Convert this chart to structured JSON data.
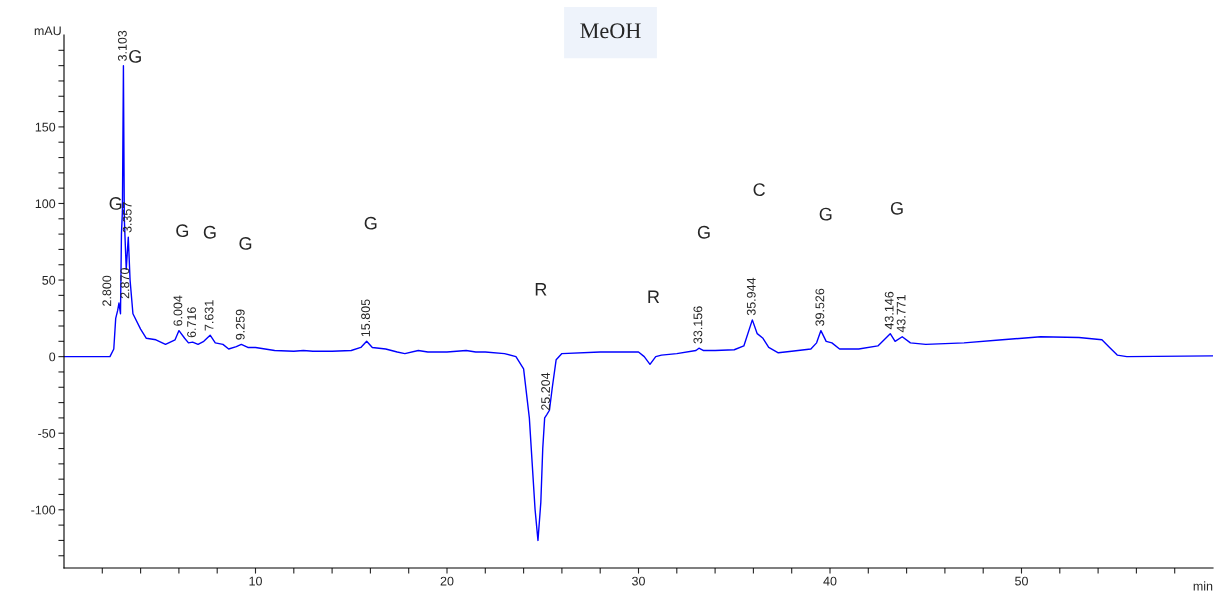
{
  "chart_data": {
    "type": "line",
    "title": "MeOH",
    "xlabel": "min",
    "ylabel": "mAU",
    "xlim": [
      0,
      60
    ],
    "ylim": [
      -138,
      210
    ],
    "xticks": [
      {
        "value": 2,
        "label": null
      },
      {
        "value": 4,
        "label": null
      },
      {
        "value": 6,
        "label": null
      },
      {
        "value": 8,
        "label": null
      },
      10,
      {
        "value": 12,
        "label": null
      },
      {
        "value": 14,
        "label": null
      },
      {
        "value": 16,
        "label": null
      },
      {
        "value": 18,
        "label": null
      },
      20,
      {
        "value": 22,
        "label": null
      },
      {
        "value": 24,
        "label": null
      },
      {
        "value": 26,
        "label": null
      },
      {
        "value": 28,
        "label": null
      },
      30,
      {
        "value": 32,
        "label": null
      },
      {
        "value": 34,
        "label": null
      },
      {
        "value": 36,
        "label": null
      },
      {
        "value": 38,
        "label": null
      },
      40,
      {
        "value": 42,
        "label": null
      },
      {
        "value": 44,
        "label": null
      },
      {
        "value": 46,
        "label": null
      },
      {
        "value": 48,
        "label": null
      },
      50,
      {
        "value": 52,
        "label": null
      },
      {
        "value": 54,
        "label": null
      },
      {
        "value": 56,
        "label": null
      },
      {
        "value": 58,
        "label": null
      }
    ],
    "yticks": [
      {
        "value": -130,
        "label": null
      },
      {
        "value": -120,
        "label": null
      },
      {
        "value": -110,
        "label": null
      },
      -100,
      {
        "value": -90,
        "label": null
      },
      {
        "value": -80,
        "label": null
      },
      {
        "value": -70,
        "label": null
      },
      {
        "value": -60,
        "label": null
      },
      -50,
      {
        "value": -40,
        "label": null
      },
      {
        "value": -30,
        "label": null
      },
      {
        "value": -20,
        "label": null
      },
      {
        "value": -10,
        "label": null
      },
      0,
      {
        "value": 10,
        "label": null
      },
      {
        "value": 20,
        "label": null
      },
      {
        "value": 30,
        "label": null
      },
      {
        "value": 40,
        "label": null
      },
      50,
      {
        "value": 60,
        "label": null
      },
      {
        "value": 70,
        "label": null
      },
      {
        "value": 80,
        "label": null
      },
      {
        "value": 90,
        "label": null
      },
      100,
      {
        "value": 110,
        "label": null
      },
      {
        "value": 120,
        "label": null
      },
      {
        "value": 130,
        "label": null
      },
      {
        "value": 140,
        "label": null
      },
      150,
      {
        "value": 160,
        "label": null
      },
      {
        "value": 170,
        "label": null
      },
      {
        "value": 180,
        "label": null
      },
      {
        "value": 190,
        "label": null
      },
      {
        "value": 200,
        "label": null
      }
    ],
    "grid": false,
    "marker": "none",
    "line_style": "solid",
    "x": [
      0,
      2.4,
      2.6,
      2.7,
      2.8,
      2.87,
      2.95,
      3.0,
      3.05,
      3.103,
      3.15,
      3.25,
      3.357,
      3.45,
      3.6,
      4.0,
      4.3,
      4.8,
      5.3,
      5.8,
      6.004,
      6.3,
      6.5,
      6.716,
      7.0,
      7.3,
      7.631,
      7.9,
      8.3,
      8.6,
      9.0,
      9.259,
      9.6,
      10,
      10.5,
      11,
      12,
      12.5,
      13,
      14,
      15,
      15.5,
      15.805,
      16.1,
      16.8,
      17.4,
      17.8,
      18.5,
      19,
      20,
      21,
      21.5,
      22,
      23,
      23.6,
      24.0,
      24.3,
      24.6,
      24.75,
      24.9,
      25.0,
      25.1,
      25.204,
      25.35,
      25.5,
      25.7,
      26,
      28,
      30,
      30.3,
      30.6,
      30.9,
      31.2,
      32,
      33,
      33.156,
      33.4,
      34,
      35,
      35.5,
      35.944,
      36.2,
      36.5,
      36.8,
      37.3,
      38,
      39,
      39.3,
      39.526,
      39.8,
      40.1,
      40.5,
      41.5,
      42.5,
      43.146,
      43.4,
      43.771,
      44.2,
      45,
      47,
      49,
      51,
      53,
      54.2,
      54.6,
      55,
      55.5,
      60
    ],
    "series": [
      {
        "color": "#0000ff",
        "values": [
          0,
          0,
          5,
          25,
          30,
          35,
          28,
          80,
          95,
          190,
          90,
          57,
          78,
          50,
          28,
          18,
          12,
          11,
          8,
          11,
          17,
          12,
          9,
          9.5,
          8,
          10,
          14,
          9,
          8,
          5,
          6.5,
          8,
          6,
          6,
          5,
          4,
          3.5,
          4,
          3.5,
          3.5,
          4,
          6,
          10,
          6,
          5,
          3,
          2,
          4,
          3,
          3,
          4,
          3,
          3,
          2,
          0,
          -8,
          -40,
          -100,
          -120,
          -95,
          -60,
          -40,
          -38,
          -35,
          -20,
          -2,
          2,
          3,
          3,
          0,
          -5,
          0,
          1,
          2,
          4,
          5.5,
          4,
          4,
          4.5,
          7,
          24,
          15,
          12,
          6,
          2.5,
          3.5,
          5,
          9,
          17,
          10,
          9,
          5,
          5,
          7,
          15,
          10,
          13,
          9,
          8,
          9,
          11,
          13,
          12.5,
          11,
          6,
          1,
          0,
          0.5
        ]
      }
    ],
    "annotations": [
      {
        "text": "2.800",
        "x": 2.8,
        "y": 30
      },
      {
        "text": "2.870",
        "x": 2.87,
        "y": 35
      },
      {
        "text": "3.103",
        "x": 3.103,
        "y": 190
      },
      {
        "text": "3.357",
        "x": 3.357,
        "y": 78
      },
      {
        "text": "6.004",
        "x": 6.004,
        "y": 17
      },
      {
        "text": "6.716",
        "x": 6.716,
        "y": 9.5
      },
      {
        "text": "7.631",
        "x": 7.631,
        "y": 14
      },
      {
        "text": "9.259",
        "x": 9.259,
        "y": 8
      },
      {
        "text": "15.805",
        "x": 15.805,
        "y": 10
      },
      {
        "text": "25.204",
        "x": 25.204,
        "y": -38
      },
      {
        "text": "33.156",
        "x": 33.156,
        "y": 5.5
      },
      {
        "text": "35.944",
        "x": 35.944,
        "y": 24
      },
      {
        "text": "39.526",
        "x": 39.526,
        "y": 17
      },
      {
        "text": "43.146",
        "x": 43.146,
        "y": 15
      },
      {
        "text": "43.771",
        "x": 43.771,
        "y": 13
      },
      "G",
      "G",
      "G",
      "G",
      "G",
      "G",
      "R",
      "R",
      "G",
      "C",
      "G",
      "G"
    ]
  }
}
